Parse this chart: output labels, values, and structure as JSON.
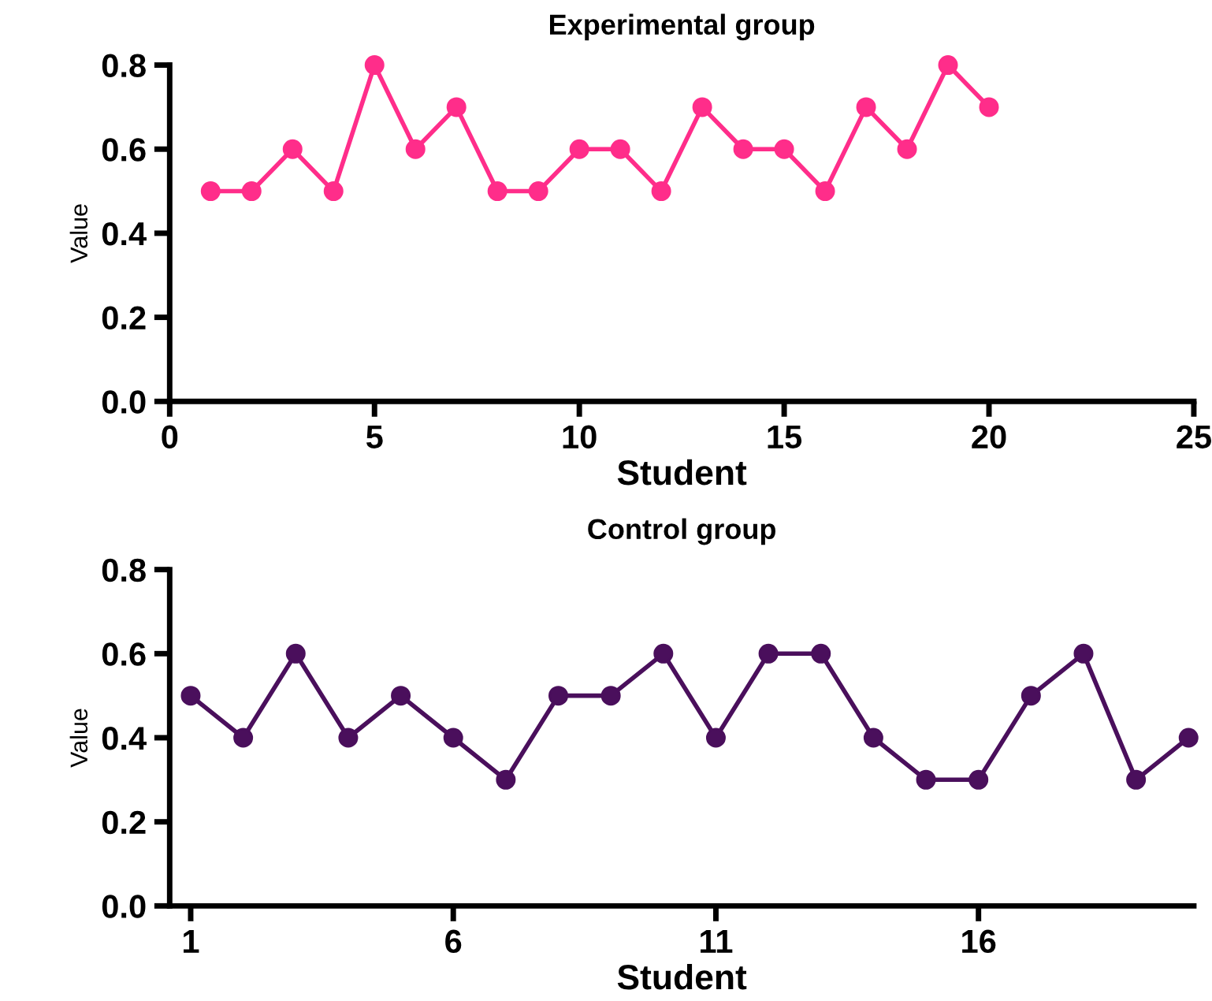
{
  "chart_data": [
    {
      "type": "line",
      "title": "Experimental group",
      "xlabel": "Student",
      "ylabel": "Value",
      "x": [
        1,
        2,
        3,
        4,
        5,
        6,
        7,
        8,
        9,
        10,
        11,
        12,
        13,
        14,
        15,
        16,
        17,
        18,
        19,
        20
      ],
      "series": [
        {
          "color": "#ff2d8a",
          "values": [
            0.5,
            0.5,
            0.6,
            0.5,
            0.8,
            0.6,
            0.7,
            0.5,
            0.5,
            0.6,
            0.6,
            0.5,
            0.7,
            0.6,
            0.6,
            0.5,
            0.7,
            0.6,
            0.8,
            0.7
          ]
        }
      ],
      "xlim": [
        0,
        25
      ],
      "xticks": [
        0,
        5,
        10,
        15,
        20,
        25
      ],
      "ylim": [
        0,
        0.8
      ],
      "yticks": [
        {
          "value": 0,
          "label": "0.0"
        },
        0.2,
        0.4,
        0.6,
        0.8
      ],
      "marker": "circle",
      "line_style": "solid",
      "grid": false,
      "legend": false
    },
    {
      "type": "line",
      "title": "Control group",
      "xlabel": "Student",
      "ylabel": "Value",
      "x": [
        1,
        2,
        3,
        4,
        5,
        6,
        7,
        8,
        9,
        10,
        11,
        12,
        13,
        14,
        15,
        16,
        17,
        18,
        19,
        20
      ],
      "series": [
        {
          "color": "#4a0f5c",
          "values": [
            0.5,
            0.4,
            0.6,
            0.4,
            0.5,
            0.4,
            0.3,
            0.5,
            0.5,
            0.6,
            0.4,
            0.6,
            0.6,
            0.4,
            0.3,
            0.3,
            0.5,
            0.6,
            0.3,
            0.4
          ]
        }
      ],
      "xlim": [
        0.6,
        20.1
      ],
      "xticks": [
        1,
        6,
        11,
        16
      ],
      "ylim": [
        0,
        0.8
      ],
      "yticks": [
        {
          "value": 0,
          "label": "0.0"
        },
        0.2,
        0.4,
        0.6,
        0.8
      ],
      "marker": "circle",
      "line_style": "solid",
      "grid": false,
      "legend": false
    }
  ]
}
